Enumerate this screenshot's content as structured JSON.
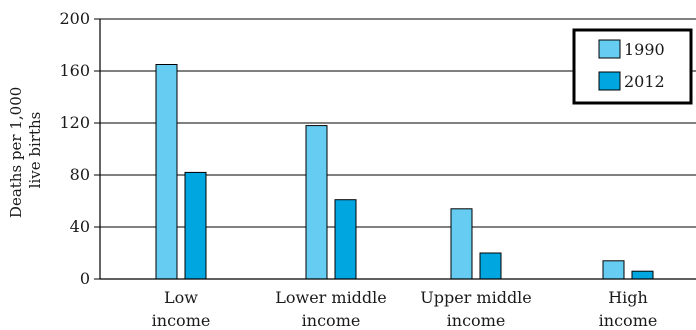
{
  "chart_data": {
    "type": "bar",
    "ylabel": [
      "Deaths per 1,000",
      "live births"
    ],
    "ylim": [
      0,
      200
    ],
    "yticks": [
      0,
      40,
      80,
      120,
      160,
      200
    ],
    "grid": true,
    "legend_position": "top-right",
    "categories": [
      [
        "Low",
        "income"
      ],
      [
        "Lower middle",
        "income"
      ],
      [
        "Upper middle",
        "income"
      ],
      [
        "High",
        "income"
      ]
    ],
    "series": [
      {
        "name": "1990",
        "color": "#66ccf2",
        "values": [
          165,
          118,
          54,
          14
        ]
      },
      {
        "name": "2012",
        "color": "#00a6e0",
        "values": [
          82,
          61,
          20,
          6
        ]
      }
    ]
  }
}
